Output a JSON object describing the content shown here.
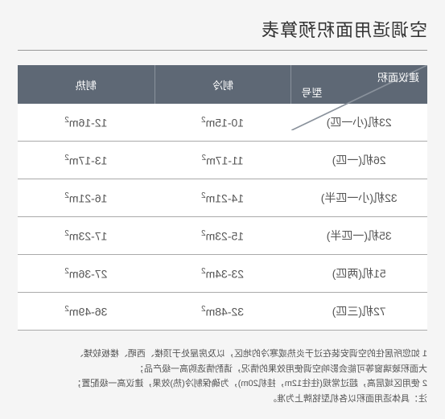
{
  "title": "空调适用面积预算表",
  "table": {
    "header_col1_top": "建议面积",
    "header_col1_bottom": "型号",
    "header_col2": "制冷",
    "header_col3": "制热",
    "rows": [
      {
        "model": "23机(小一匹)",
        "cool": "10-15m²",
        "heat": "12-16m²"
      },
      {
        "model": "26机(一匹)",
        "cool": "11-17m²",
        "heat": "13-17m²"
      },
      {
        "model": "32机(小一匹半)",
        "cool": "14-21m²",
        "heat": "16-21m²"
      },
      {
        "model": "35机(一匹半)",
        "cool": "15-23m²",
        "heat": "17-23m²"
      },
      {
        "model": "51机(两匹)",
        "cool": "23-34m²",
        "heat": "27-36m²"
      },
      {
        "model": "72机(三匹)",
        "cool": "32-48m²",
        "heat": "36-49m²"
      }
    ]
  },
  "notes": {
    "line1": "1 如您所居住的空调安装在过于炎热或寒冷的地区，以及房屋处于顶楼、西晒、楼板较矮、",
    "line2": "大面积玻璃窗等可能会影响空调使用效果的情况，请酌情选购高一级产品；",
    "line3": "2 使用区域层高，超过常规(往往12m，挂机20m)，为确保制冷(热)效果，建议高一级配置；",
    "line4": "注：具体适用面积以各机型铭牌上为准。"
  },
  "colors": {
    "page_bg": "#f5f5f5",
    "header_bg": "#5e6875",
    "header_border": "#8a929c",
    "cell_border": "#aaaaaa",
    "text": "#555555",
    "title_text": "#333333"
  }
}
